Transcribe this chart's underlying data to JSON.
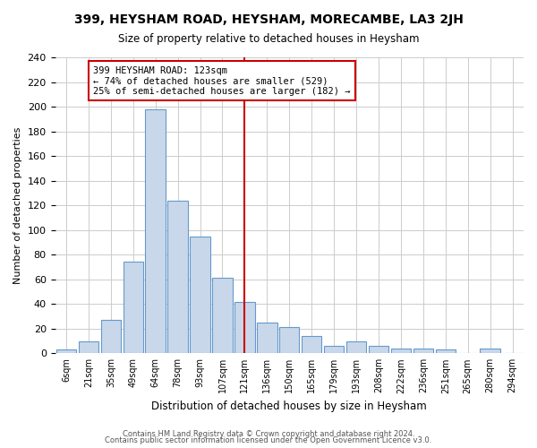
{
  "title": "399, HEYSHAM ROAD, HEYSHAM, MORECAMBE, LA3 2JH",
  "subtitle": "Size of property relative to detached houses in Heysham",
  "xlabel": "Distribution of detached houses by size in Heysham",
  "ylabel": "Number of detached properties",
  "bar_color": "#c8d8ea",
  "bar_edge_color": "#6699cc",
  "tick_labels": [
    "6sqm",
    "21sqm",
    "35sqm",
    "49sqm",
    "64sqm",
    "78sqm",
    "93sqm",
    "107sqm",
    "121sqm",
    "136sqm",
    "150sqm",
    "165sqm",
    "179sqm",
    "193sqm",
    "208sqm",
    "222sqm",
    "236sqm",
    "251sqm",
    "265sqm",
    "280sqm",
    "294sqm"
  ],
  "bar_heights": [
    3,
    10,
    27,
    74,
    198,
    124,
    95,
    61,
    42,
    25,
    21,
    14,
    6,
    10,
    6,
    4,
    4,
    3,
    0,
    4,
    0
  ],
  "vline_idx": 8,
  "vline_color": "#cc0000",
  "annotation_text": "399 HEYSHAM ROAD: 123sqm\n← 74% of detached houses are smaller (529)\n25% of semi-detached houses are larger (182) →",
  "annotation_box_color": "#ffffff",
  "annotation_box_edge": "#cc0000",
  "footer1": "Contains HM Land Registry data © Crown copyright and database right 2024.",
  "footer2": "Contains public sector information licensed under the Open Government Licence v3.0.",
  "ylim": [
    0,
    240
  ],
  "yticks": [
    0,
    20,
    40,
    60,
    80,
    100,
    120,
    140,
    160,
    180,
    200,
    220,
    240
  ],
  "background_color": "#ffffff",
  "grid_color": "#cccccc"
}
